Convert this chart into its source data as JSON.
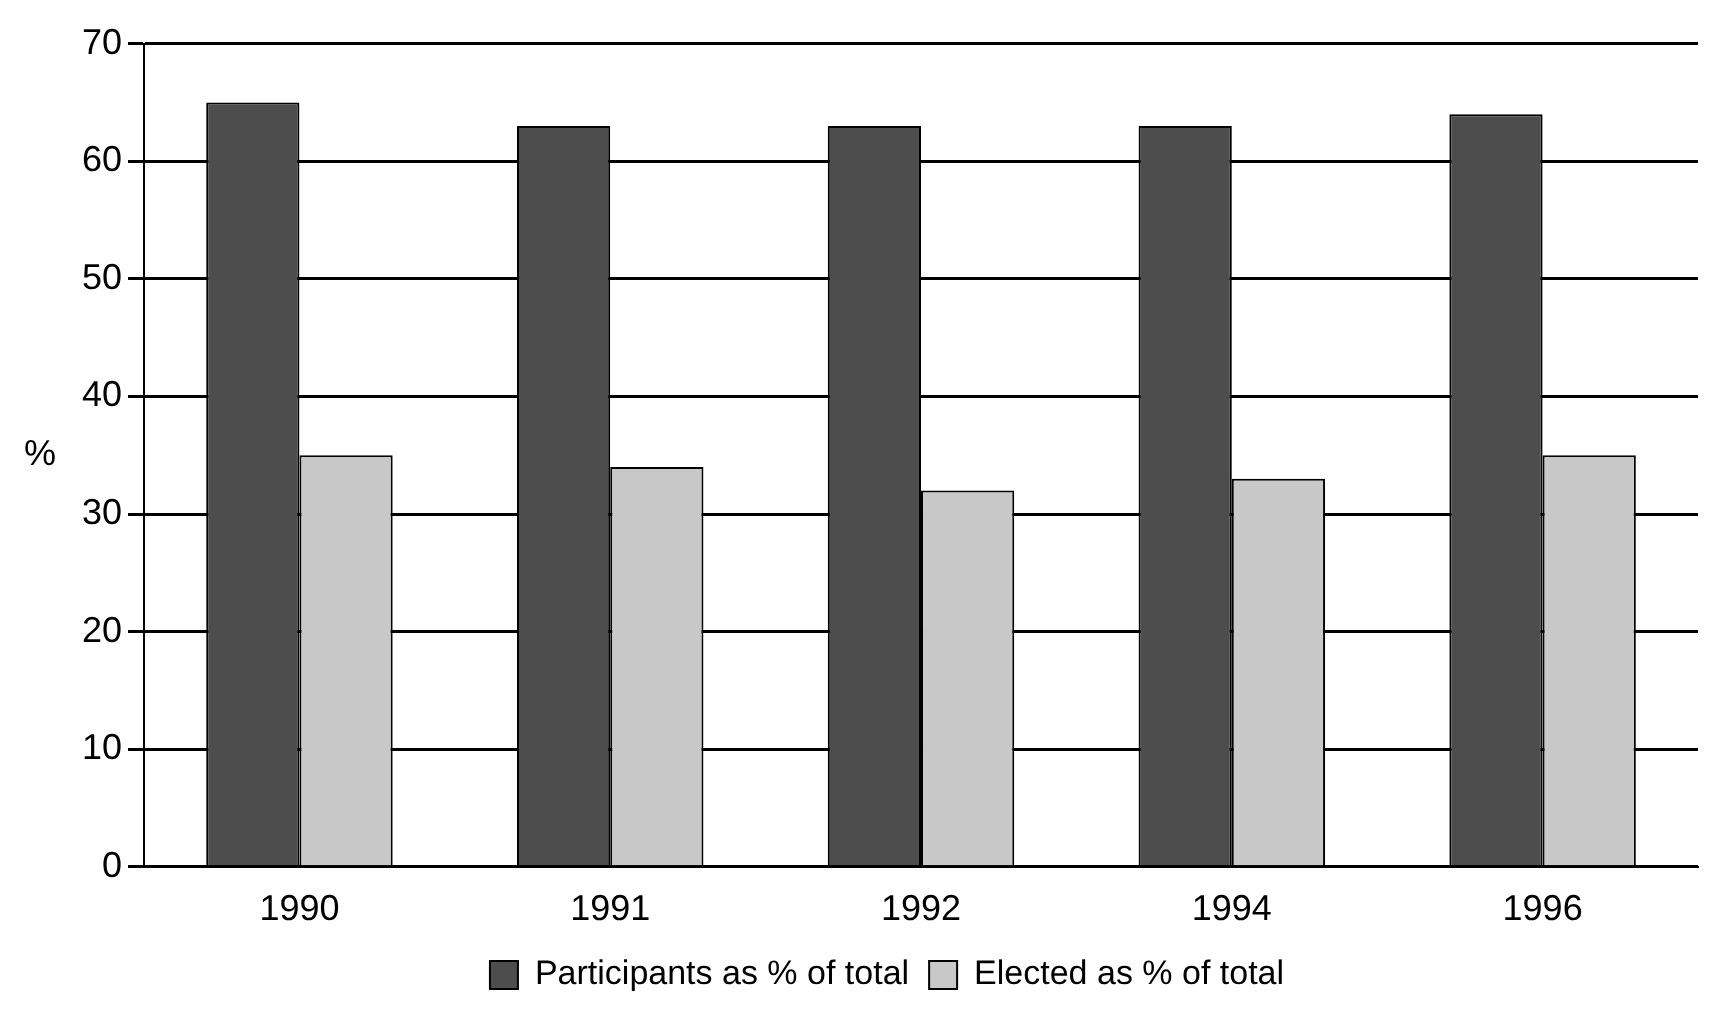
{
  "chart_data": {
    "type": "bar",
    "ylabel": "%",
    "categories": [
      "1990",
      "1991",
      "1992",
      "1994",
      "1996"
    ],
    "series": [
      {
        "name": "Participants as % of total",
        "color": "#4d4d4d",
        "values": [
          65,
          63,
          63,
          63,
          64
        ]
      },
      {
        "name": "Elected as % of total",
        "color": "#c8c8c8",
        "values": [
          35,
          34,
          32,
          33,
          35
        ]
      }
    ],
    "ylim": [
      0,
      70
    ],
    "yticks": [
      0,
      10,
      20,
      30,
      40,
      50,
      60,
      70
    ],
    "grid": "y",
    "legend": "bottom"
  }
}
